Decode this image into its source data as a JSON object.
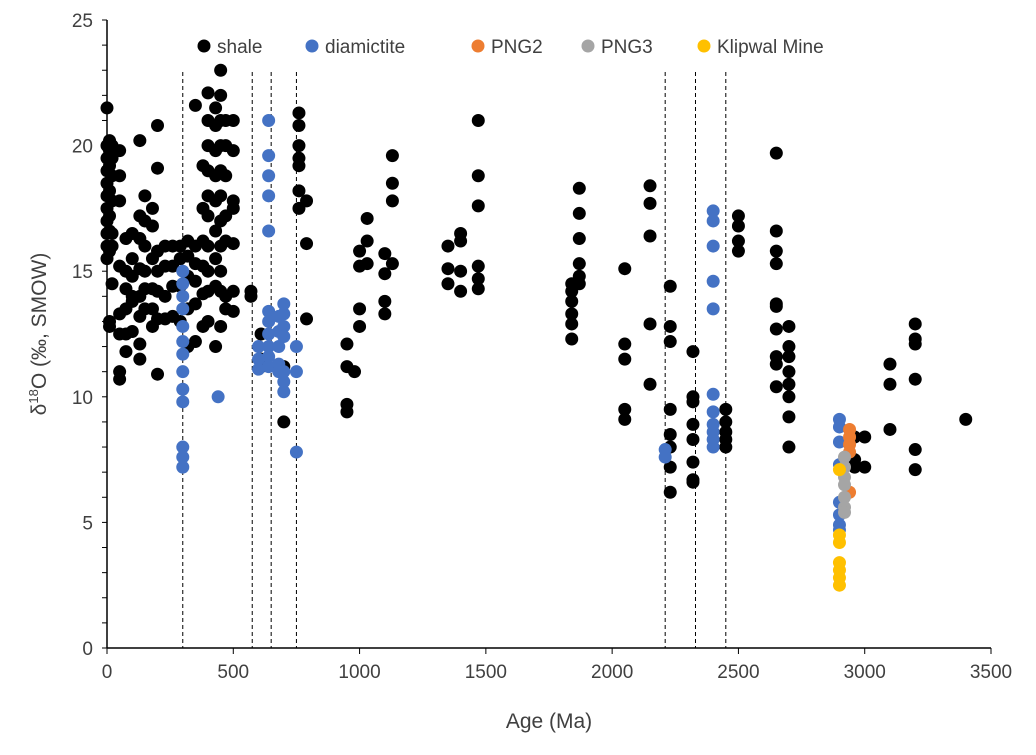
{
  "chart_data": {
    "type": "scatter",
    "title": "",
    "xlabel": "Age (Ma)",
    "ylabel_main": "δ",
    "ylabel_sup": "18",
    "ylabel_rest": "O (‰, SMOW)",
    "xlim": [
      0,
      3500
    ],
    "ylim": [
      0,
      25
    ],
    "xticks": [
      0,
      500,
      1000,
      1500,
      2000,
      2500,
      3000,
      3500
    ],
    "yticks": [
      0,
      5,
      10,
      15,
      20,
      25
    ],
    "y_minor_step": 1,
    "grid": false,
    "legend_placement": "top",
    "vertical_dashed_lines": [
      300,
      575,
      650,
      750,
      2210,
      2330,
      2450
    ],
    "series": [
      {
        "name": "shale",
        "color": "#000000",
        "groups": [
          [
            0,
            [
              21.5,
              20,
              19.5,
              19,
              18.5,
              18,
              17.5,
              17,
              16.5,
              16,
              15.5
            ]
          ],
          [
            10,
            [
              20.2,
              19.8,
              19.2,
              18.2,
              17.2,
              16.6,
              15.8,
              13,
              12.8
            ]
          ],
          [
            20,
            [
              20,
              19.5,
              18.8,
              17.8,
              16.5,
              16,
              14.5
            ]
          ],
          [
            50,
            [
              19.8,
              18.8,
              17.8,
              15.2,
              12.5,
              11,
              10.7,
              13.3
            ]
          ],
          [
            75,
            [
              13.5,
              12.5,
              11.8,
              14.3,
              15,
              16.3
            ]
          ],
          [
            100,
            [
              14.8,
              14,
              13.8,
              12.6,
              15.5,
              16.5
            ]
          ],
          [
            130,
            [
              17.2,
              16.3,
              15.1,
              14,
              13.2,
              12.1,
              11.5,
              20.2
            ]
          ],
          [
            150,
            [
              18,
              17,
              16,
              15,
              14.3,
              13.5
            ]
          ],
          [
            180,
            [
              15.5,
              14.3,
              13.5,
              12.8,
              16.8,
              17.5
            ]
          ],
          [
            200,
            [
              20.8,
              19.1,
              15.8,
              15,
              14.2,
              13.1,
              10.9
            ]
          ],
          [
            230,
            [
              15.2,
              14,
              16,
              13.1
            ]
          ],
          [
            260,
            [
              14.4,
              13.2,
              16,
              15.2
            ]
          ],
          [
            290,
            [
              16,
              15.5,
              14.4,
              13
            ]
          ],
          [
            320,
            [
              16.2,
              15.6,
              14.8,
              13.5,
              12
            ]
          ],
          [
            350,
            [
              21.6,
              16,
              14.6,
              13.7,
              12.2,
              15.3
            ]
          ],
          [
            380,
            [
              17.5,
              16.2,
              15.2,
              14.1,
              12.8,
              19.2
            ]
          ],
          [
            400,
            [
              22.1,
              21,
              20,
              19,
              18,
              17.2,
              16,
              15,
              14.2,
              13
            ]
          ],
          [
            430,
            [
              21.5,
              20.8,
              19.8,
              18.8,
              17.8,
              16.6,
              15.5,
              14.4,
              12
            ]
          ],
          [
            450,
            [
              23,
              22,
              21,
              20,
              19,
              18,
              17,
              16,
              15,
              14.2,
              12.8
            ]
          ],
          [
            470,
            [
              21,
              20,
              18.8,
              17.2,
              16.2,
              14,
              13.5
            ]
          ],
          [
            500,
            [
              21,
              19.8,
              17.8,
              17.5,
              16.1,
              14.2,
              13.4
            ]
          ],
          [
            570,
            [
              14.2,
              14
            ]
          ],
          [
            610,
            [
              11.5,
              11.2,
              12.5
            ]
          ],
          [
            700,
            [
              11.2,
              9
            ]
          ],
          [
            760,
            [
              21.3,
              20.8,
              20,
              19.5,
              19.2,
              18.2,
              17.5
            ]
          ],
          [
            790,
            [
              17.8,
              16.1,
              13.1
            ]
          ],
          [
            950,
            [
              12.1,
              11.2,
              9.7,
              9.4
            ]
          ],
          [
            980,
            [
              11
            ]
          ],
          [
            1000,
            [
              15.2,
              13.5,
              12.8,
              15.8
            ]
          ],
          [
            1030,
            [
              17.1,
              16.2,
              15.3
            ]
          ],
          [
            1100,
            [
              15.7,
              14.9,
              13.8,
              13.3
            ]
          ],
          [
            1130,
            [
              19.6,
              18.5,
              17.8,
              15.3
            ]
          ],
          [
            1350,
            [
              16,
              15.1,
              14.5
            ]
          ],
          [
            1400,
            [
              16.5,
              16.2,
              15,
              14.2
            ]
          ],
          [
            1470,
            [
              21,
              18.8,
              17.6,
              15.2,
              14.7,
              14.3
            ]
          ],
          [
            1840,
            [
              14.5,
              14.2,
              13.8,
              13.3,
              12.9,
              12.3
            ]
          ],
          [
            1870,
            [
              18.3,
              17.3,
              16.3,
              15.3,
              14.8,
              14.5
            ]
          ],
          [
            2050,
            [
              15.1,
              12.1,
              11.5,
              9.5,
              9.1
            ]
          ],
          [
            2150,
            [
              18.4,
              17.7,
              16.4,
              12.9,
              10.5
            ]
          ],
          [
            2230,
            [
              14.4,
              12.8,
              12.2,
              9.5,
              8.5,
              8,
              7.2,
              6.2
            ]
          ],
          [
            2320,
            [
              11.8,
              10,
              9.8,
              8.9,
              8.3,
              7.4,
              6.7,
              6.6
            ]
          ],
          [
            2450,
            [
              9.5,
              9,
              8.6,
              8.3,
              8
            ]
          ],
          [
            2500,
            [
              17.2,
              16.8,
              16.2,
              15.8
            ]
          ],
          [
            2650,
            [
              19.7,
              16.6,
              15.8,
              15.3,
              13.7,
              13.6,
              12.7,
              11.6,
              11.3,
              10.4
            ]
          ],
          [
            2700,
            [
              12.8,
              12,
              11.6,
              11,
              10.5,
              10,
              9.2,
              8
            ]
          ],
          [
            2960,
            [
              8.4,
              7.5,
              7.2
            ]
          ],
          [
            3000,
            [
              8.4,
              7.2
            ]
          ],
          [
            3100,
            [
              11.3,
              10.5,
              8.7
            ]
          ],
          [
            3200,
            [
              12.9,
              12.3,
              12.1,
              10.7,
              7.9,
              7.1
            ]
          ],
          [
            3400,
            [
              9.1
            ]
          ]
        ]
      },
      {
        "name": "diamictite",
        "color": "#4472C4",
        "groups": [
          [
            300,
            [
              15,
              14.5,
              14,
              13.5,
              12.8,
              12.2,
              11.7,
              11,
              10.3,
              9.8,
              8,
              7.6,
              7.2
            ]
          ],
          [
            440,
            [
              10
            ]
          ],
          [
            600,
            [
              12,
              11.5,
              11.1
            ]
          ],
          [
            640,
            [
              21,
              19.6,
              18.8,
              18,
              16.6,
              13.4,
              13,
              12.5,
              12,
              11.6,
              11.2
            ]
          ],
          [
            680,
            [
              13.2,
              12.6,
              12,
              11.3,
              11
            ]
          ],
          [
            700,
            [
              13.7,
              13.3,
              12.8,
              12.4,
              11,
              10.6,
              10.2
            ]
          ],
          [
            750,
            [
              12,
              11,
              7.8
            ]
          ],
          [
            2210,
            [
              7.9,
              7.6
            ]
          ],
          [
            2400,
            [
              17.4,
              17,
              16,
              14.6,
              13.5,
              10.1,
              9.4,
              8.9,
              8.6,
              8.3,
              8
            ]
          ],
          [
            2900,
            [
              9.1,
              8.8,
              8.2,
              7.3,
              5.8,
              5.3,
              4.9,
              4.7
            ]
          ]
        ]
      },
      {
        "name": "PNG2",
        "color": "#ED7D31",
        "groups": [
          [
            2940,
            [
              8.7,
              8.4,
              8.1,
              7.8,
              6.2
            ]
          ]
        ]
      },
      {
        "name": "PNG3",
        "color": "#A5A5A5",
        "groups": [
          [
            2920,
            [
              7.6,
              7.2,
              6.8,
              6.5,
              6,
              5.6,
              5.4
            ]
          ]
        ]
      },
      {
        "name": "Klipwal Mine",
        "color": "#FFC000",
        "groups": [
          [
            2900,
            [
              7.1,
              4.5,
              4.2,
              3.4,
              3.1,
              2.8,
              2.5
            ]
          ]
        ]
      }
    ]
  }
}
